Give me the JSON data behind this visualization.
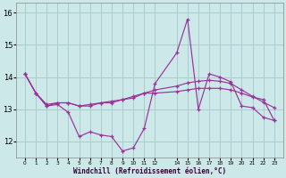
{
  "xlabel": "Windchill (Refroidissement éolien,°C)",
  "bg_color": "#cce8e8",
  "grid_color": "#aacccc",
  "line_color": "#993399",
  "x_hours": [
    0,
    1,
    2,
    3,
    4,
    5,
    6,
    7,
    8,
    9,
    10,
    11,
    12,
    14,
    15,
    16,
    17,
    18,
    19,
    20,
    21,
    22,
    23
  ],
  "series1": [
    14.1,
    13.5,
    13.1,
    13.15,
    12.9,
    12.15,
    12.3,
    12.2,
    12.15,
    11.7,
    11.8,
    12.4,
    13.8,
    14.75,
    15.8,
    13.0,
    14.1,
    14.0,
    13.85,
    13.1,
    13.05,
    12.75,
    12.65
  ],
  "series2": [
    14.1,
    13.5,
    13.15,
    13.2,
    13.2,
    13.1,
    13.1,
    13.2,
    13.2,
    13.3,
    13.35,
    13.5,
    13.6,
    13.72,
    13.82,
    13.87,
    13.9,
    13.87,
    13.8,
    13.6,
    13.4,
    13.22,
    13.05
  ],
  "series3": [
    14.1,
    13.5,
    13.1,
    13.2,
    13.2,
    13.1,
    13.15,
    13.2,
    13.25,
    13.3,
    13.4,
    13.5,
    13.5,
    13.55,
    13.6,
    13.65,
    13.65,
    13.65,
    13.6,
    13.5,
    13.38,
    13.3,
    12.65
  ],
  "ylim": [
    11.5,
    16.3
  ],
  "yticks": [
    12,
    13,
    14,
    15,
    16
  ],
  "xtick_positions": [
    0,
    1,
    2,
    3,
    4,
    5,
    6,
    7,
    8,
    9,
    10,
    11,
    12,
    14,
    15,
    16,
    17,
    18,
    19,
    20,
    21,
    22,
    23
  ],
  "xtick_labels": [
    "0",
    "1",
    "2",
    "3",
    "4",
    "5",
    "6",
    "7",
    "8",
    "9",
    "10",
    "11",
    "12",
    "14",
    "15",
    "16",
    "17",
    "18",
    "19",
    "20",
    "21",
    "22",
    "23"
  ]
}
